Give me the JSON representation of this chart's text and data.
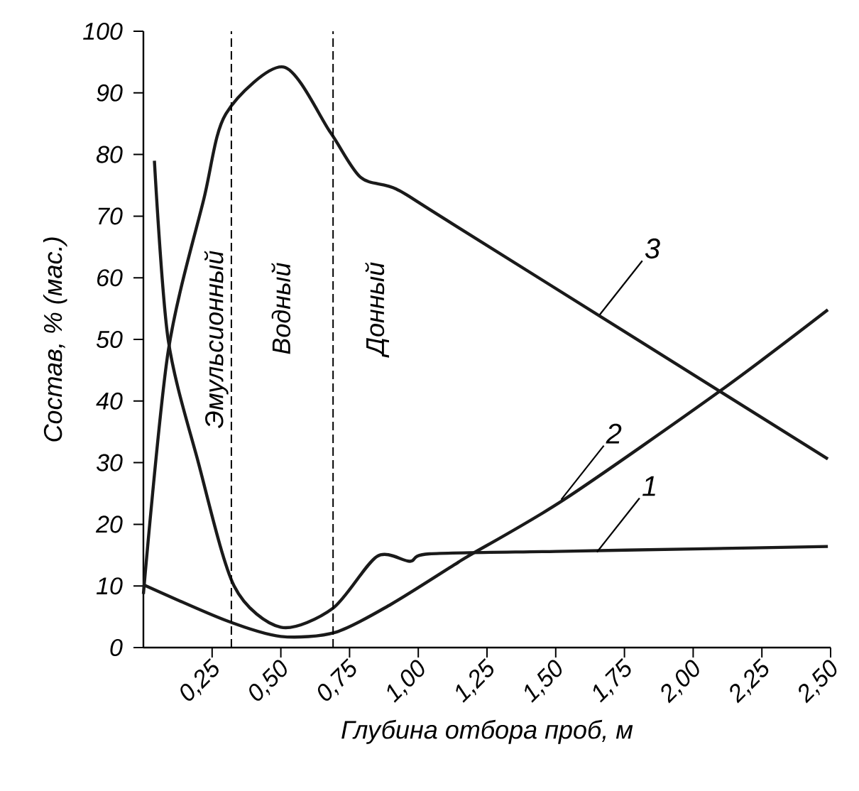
{
  "chart_data": {
    "type": "line",
    "xlabel": "Глубина отбора проб, м",
    "ylabel": "Состав, % (мас.)",
    "xlim": [
      0,
      2.5
    ],
    "ylim": [
      0,
      100
    ],
    "xticks": [
      {
        "value": 0.25,
        "label": "0,25"
      },
      {
        "value": 0.5,
        "label": "0,50"
      },
      {
        "value": 0.75,
        "label": "0,75"
      },
      {
        "value": 1.0,
        "label": "1,00"
      },
      {
        "value": 1.25,
        "label": "1,25"
      },
      {
        "value": 1.5,
        "label": "1,50"
      },
      {
        "value": 1.75,
        "label": "1,75"
      },
      {
        "value": 2.0,
        "label": "2,00"
      },
      {
        "value": 2.25,
        "label": "2,25"
      },
      {
        "value": 2.5,
        "label": "2,50"
      }
    ],
    "yticks": [
      0,
      10,
      20,
      30,
      40,
      50,
      60,
      70,
      80,
      90,
      100
    ],
    "marker": "none",
    "line_style": "solid",
    "grid": false,
    "series": [
      {
        "color": "#1a1a1a",
        "x": [
          0.04,
          0.09,
          0.2,
          0.33,
          0.5,
          0.69,
          0.85,
          0.97,
          1.04,
          1.5,
          2.0,
          2.49
        ],
        "values": [
          79,
          50,
          30,
          10,
          3.3,
          6.4,
          14.8,
          14,
          15.2,
          15.6,
          16,
          16.4
        ]
      },
      {
        "color": "#1a1a1a",
        "x": [
          0.0,
          0.3,
          0.5,
          0.7,
          0.9,
          1.13,
          1.18,
          1.53,
          2.1,
          2.49
        ],
        "values": [
          10.2,
          4.4,
          1.8,
          2.5,
          7,
          13.4,
          14.8,
          24,
          41.7,
          54.8
        ]
      },
      {
        "color": "#1a1a1a",
        "x": [
          0.0,
          0.09,
          0.22,
          0.3,
          0.51,
          0.68,
          0.79,
          0.92,
          1.13,
          2.49
        ],
        "values": [
          8.7,
          48,
          72.8,
          86.6,
          94.2,
          83.6,
          76.3,
          74.4,
          68.6,
          30.6
        ]
      }
    ],
    "ref_lines": [
      {
        "axis": "x",
        "value": 0.32,
        "line_style": "dashed"
      },
      {
        "axis": "x",
        "value": 0.69,
        "line_style": "dashed"
      }
    ],
    "annotations": [
      "Эмульсионный",
      "Водный",
      "Донный",
      {
        "text": "1",
        "x": 1.65,
        "y": 15.5
      },
      {
        "text": "2",
        "x": 1.52,
        "y": 24
      },
      {
        "text": "3",
        "x": 1.66,
        "y": 54
      }
    ]
  }
}
